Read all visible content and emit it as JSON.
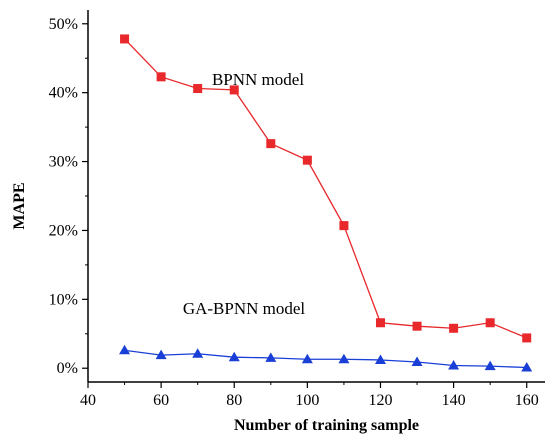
{
  "chart_data": {
    "type": "line",
    "xlabel": "Number of training sample",
    "ylabel": "MAPE",
    "xlim": [
      40,
      165
    ],
    "ylim": [
      -2,
      52
    ],
    "x_ticks": [
      40,
      60,
      80,
      100,
      120,
      140,
      160
    ],
    "x_tick_labels": [
      "40",
      "60",
      "80",
      "100",
      "120",
      "140",
      "160"
    ],
    "y_ticks": [
      0,
      10,
      20,
      30,
      40,
      50
    ],
    "y_tick_labels": [
      "0%",
      "10%",
      "20%",
      "30%",
      "40%",
      "50%"
    ],
    "grid": false,
    "x": [
      50,
      60,
      70,
      80,
      90,
      100,
      110,
      120,
      130,
      140,
      150,
      160
    ],
    "series": [
      {
        "name": "BPNN model",
        "color": "#e8282b",
        "marker": "square",
        "values": [
          47.8,
          42.3,
          40.6,
          40.4,
          32.6,
          30.2,
          20.7,
          6.6,
          6.1,
          5.8,
          6.6,
          4.4
        ]
      },
      {
        "name": "GA-BPNN model",
        "color": "#1a3fd6",
        "marker": "triangle",
        "values": [
          2.6,
          1.9,
          2.1,
          1.6,
          1.5,
          1.3,
          1.3,
          1.2,
          0.9,
          0.4,
          0.3,
          0.1
        ]
      }
    ]
  }
}
